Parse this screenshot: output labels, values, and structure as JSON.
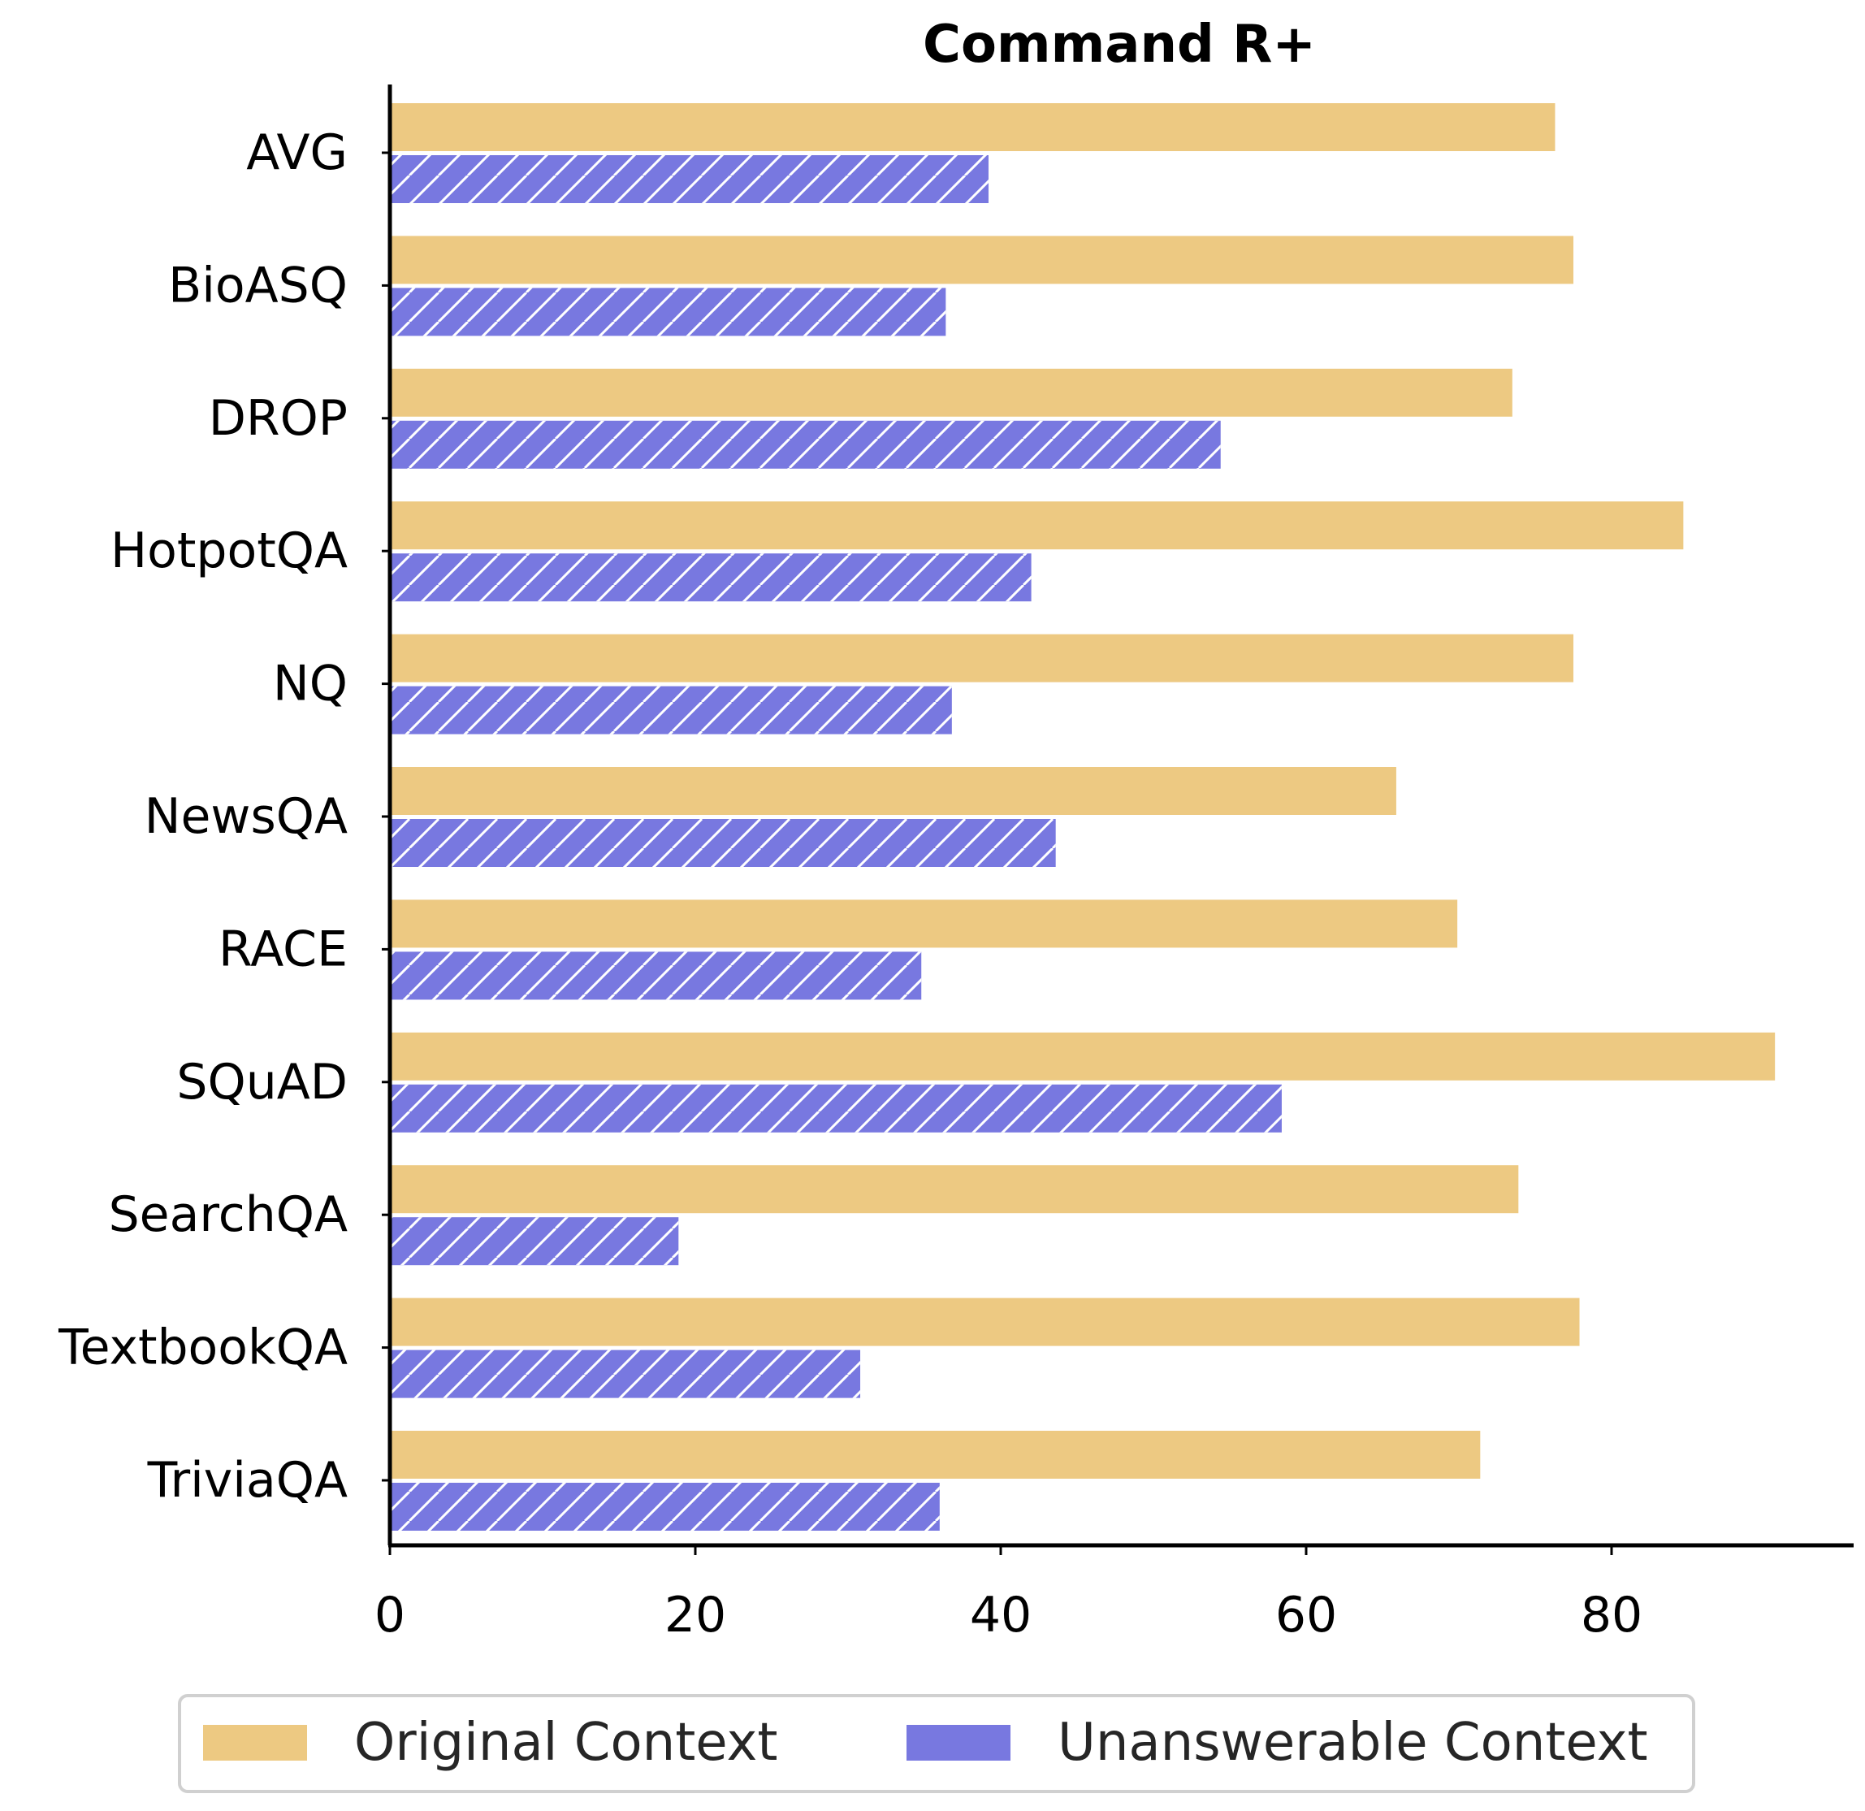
{
  "chart_data": {
    "type": "bar",
    "orientation": "horizontal",
    "title": "Command R+",
    "xlabel": "",
    "ylabel": "",
    "categories": [
      "AVG",
      "BioASQ",
      "DROP",
      "HotpotQA",
      "NQ",
      "NewsQA",
      "RACE",
      "SQuAD",
      "SearchQA",
      "TextbookQA",
      "TriviaQA"
    ],
    "series": [
      {
        "name": "Original Context",
        "color": "#edc982",
        "hatch": false,
        "values": [
          76.3,
          77.5,
          73.5,
          84.7,
          77.5,
          65.9,
          69.9,
          90.7,
          73.9,
          77.9,
          71.4
        ]
      },
      {
        "name": "Unanswerable Context",
        "color": "#7878e0",
        "hatch": true,
        "values": [
          39.2,
          36.4,
          54.4,
          42.0,
          36.8,
          43.6,
          34.8,
          58.4,
          18.9,
          30.8,
          36.0
        ]
      }
    ],
    "xticks": [
      "0",
      "20",
      "40",
      "60",
      "80"
    ],
    "xlim": [
      0,
      96
    ],
    "grid": false,
    "legend_position": "bottom"
  }
}
